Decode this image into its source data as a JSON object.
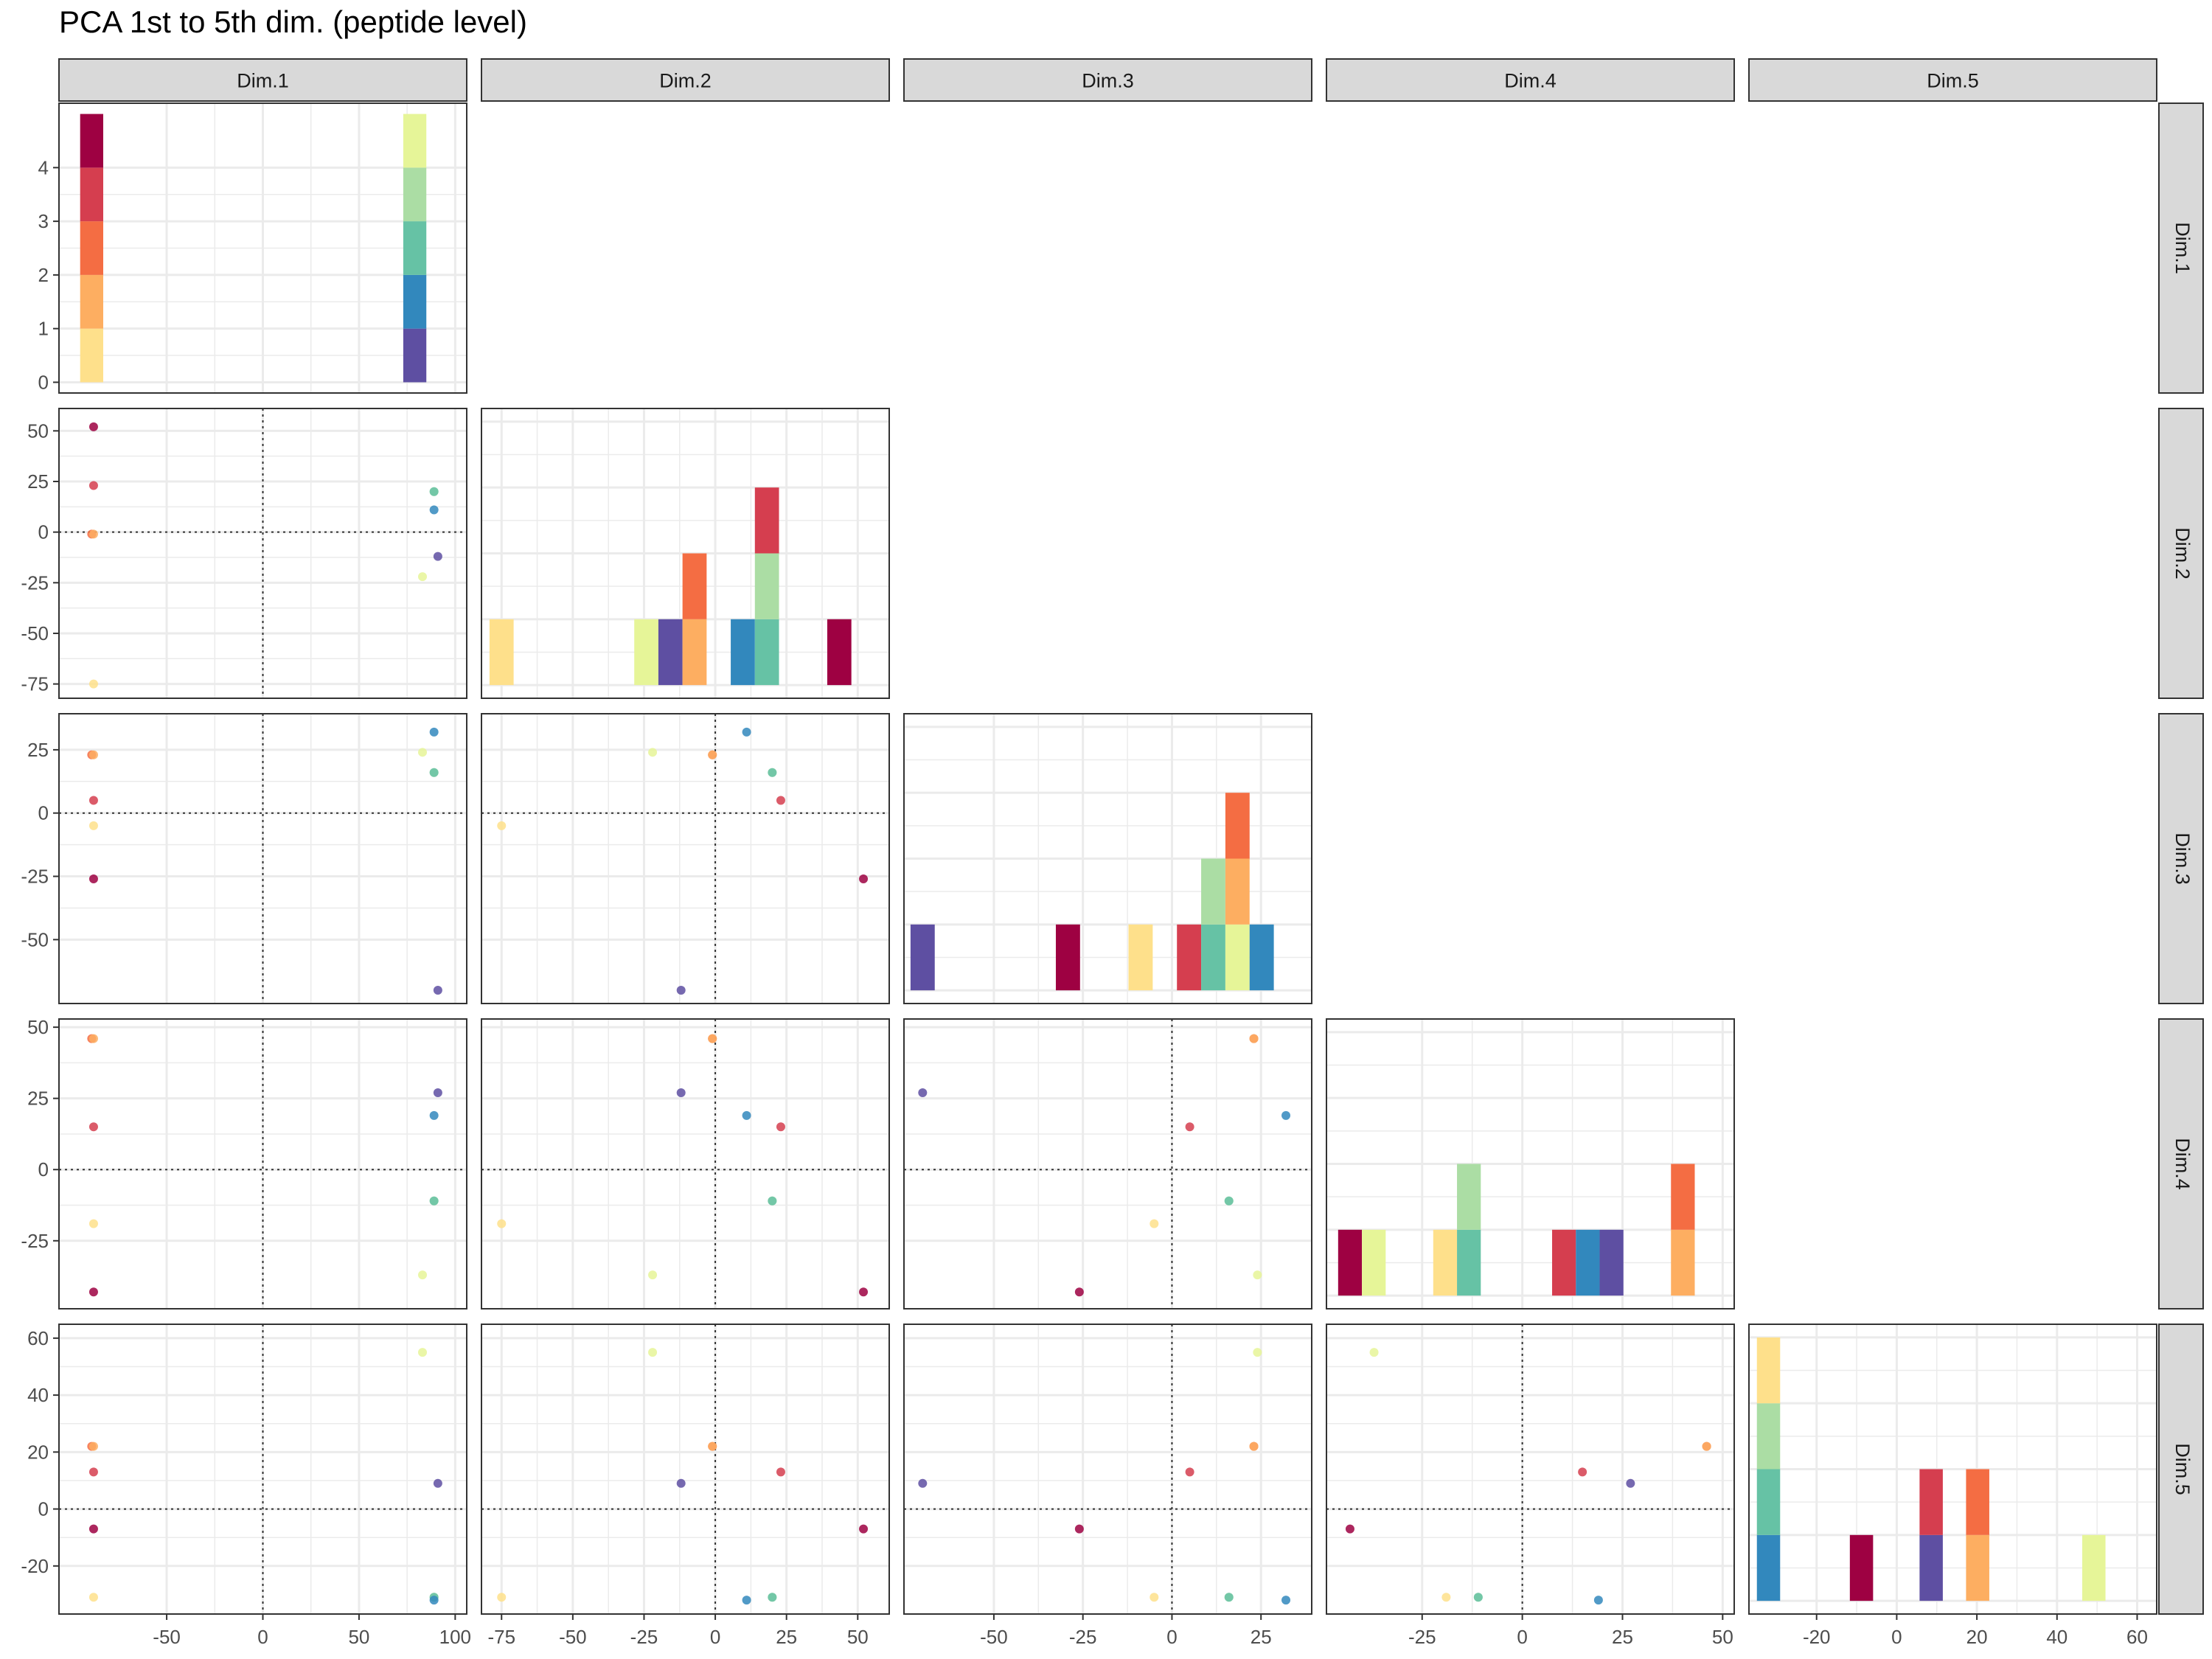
{
  "title": "PCA 1st to 5th dim. (peptide level)",
  "dims": [
    "Dim.1",
    "Dim.2",
    "Dim.3",
    "Dim.4",
    "Dim.5"
  ],
  "colors": {
    "panel_border": "#333333",
    "strip_fill": "#d9d9d9",
    "grid": "#ebebeb",
    "axis_text": "#4d4d4d"
  },
  "chart_data": {
    "type": "scatter",
    "layout": "lower-triangle pairs matrix (scatter off-diagonal, stacked histogram on diagonal)",
    "samples": [
      {
        "color": "#9e0142",
        "values": [
          -88,
          52,
          -26,
          -43,
          -7
        ]
      },
      {
        "color": "#d53e4f",
        "values": [
          -88,
          23,
          5,
          15,
          13
        ]
      },
      {
        "color": "#f46d43",
        "values": [
          -89,
          -1,
          23,
          46,
          22
        ]
      },
      {
        "color": "#fdae61",
        "values": [
          -88,
          -1,
          23,
          46,
          22
        ]
      },
      {
        "color": "#fee08b",
        "values": [
          -88,
          -75,
          -5,
          -19,
          -31
        ]
      },
      {
        "color": "#e6f598",
        "values": [
          83,
          -22,
          24,
          -37,
          55
        ]
      },
      {
        "color": "#abdda4",
        "values": [
          89,
          20,
          16,
          -11,
          -31
        ]
      },
      {
        "color": "#66c2a5",
        "values": [
          89,
          20,
          16,
          -11,
          -31
        ]
      },
      {
        "color": "#3288bd",
        "values": [
          89,
          11,
          32,
          19,
          -32
        ]
      },
      {
        "color": "#5e4fa2",
        "values": [
          91,
          -12,
          -70,
          27,
          9
        ]
      }
    ],
    "ranges": [
      [
        -100,
        100
      ],
      [
        -78,
        57
      ],
      [
        -72,
        36
      ],
      [
        -46,
        50
      ],
      [
        -34,
        62
      ]
    ],
    "ticks": [
      [
        -50,
        0,
        50,
        100
      ],
      [
        -75,
        -50,
        -25,
        0,
        25,
        50
      ],
      [
        -50,
        -25,
        0,
        25
      ],
      [
        -25,
        0,
        25,
        50
      ],
      [
        -20,
        0,
        20,
        40,
        60
      ]
    ],
    "diag_y_ticks": [
      0,
      1,
      2,
      3,
      4
    ],
    "reference_lines": "dotted lines at x = 0 and y = 0",
    "grid": true,
    "legend": "none"
  }
}
